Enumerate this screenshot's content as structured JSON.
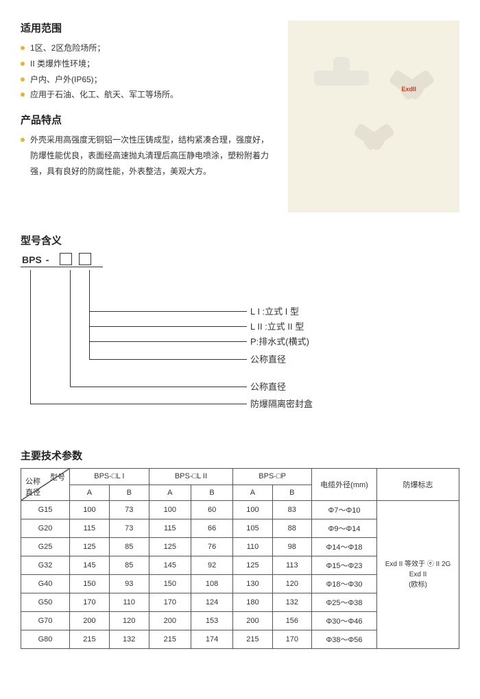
{
  "sections": {
    "scope_title": "适用范围",
    "scope_items": [
      "1区、2区危险场所；",
      "II 类爆炸性环境；",
      "户内、户外(IP65)；",
      "应用于石油、化工、航天、军工等场所。"
    ],
    "features_title": "产品特点",
    "features_text": "外壳采用高强度无铜铝一次性压铸成型，结构紧凑合理，强度好，防爆性能优良，表面经高速抛丸清理后高压静电喷涂，塑粉附着力强，具有良好的防腐性能，外表整洁，美观大方。",
    "model_title": "型号含义",
    "model_prefix": "BPS",
    "model_dash": "-",
    "model_legend": {
      "l1": "L I :立式 I 型",
      "l2": "L II :立式 II 型",
      "p": "P:排水式(横式)",
      "dia": "公称直径",
      "box": "防爆隔离密封盒"
    },
    "ex_label": "ExdII",
    "params_title": "主要技术参数"
  },
  "table": {
    "diag_top": "型号",
    "diag_bot": "公称\n直径",
    "group_labels": [
      "BPS-□L I",
      "BPS-□L II",
      "BPS-□P"
    ],
    "sub_labels": [
      "A",
      "B"
    ],
    "col_cable": "电缆外径(mm)",
    "col_mark": "防爆标志",
    "mark_text": "Exd II 等效于 ⓔ II 2G Exd II\n(欧标)",
    "rows": [
      {
        "d": "G15",
        "v": [
          "100",
          "73",
          "100",
          "60",
          "100",
          "83"
        ],
        "c": "Φ7～Φ10"
      },
      {
        "d": "G20",
        "v": [
          "115",
          "73",
          "115",
          "66",
          "105",
          "88"
        ],
        "c": "Φ9～Φ14"
      },
      {
        "d": "G25",
        "v": [
          "125",
          "85",
          "125",
          "76",
          "110",
          "98"
        ],
        "c": "Φ14～Φ18"
      },
      {
        "d": "G32",
        "v": [
          "145",
          "85",
          "145",
          "92",
          "125",
          "113"
        ],
        "c": "Φ15～Φ23"
      },
      {
        "d": "G40",
        "v": [
          "150",
          "93",
          "150",
          "108",
          "130",
          "120"
        ],
        "c": "Φ18～Φ30"
      },
      {
        "d": "G50",
        "v": [
          "170",
          "110",
          "170",
          "124",
          "180",
          "132"
        ],
        "c": "Φ25～Φ38"
      },
      {
        "d": "G70",
        "v": [
          "200",
          "120",
          "200",
          "153",
          "200",
          "156"
        ],
        "c": "Φ30～Φ46"
      },
      {
        "d": "G80",
        "v": [
          "215",
          "132",
          "215",
          "174",
          "215",
          "170"
        ],
        "c": "Φ38～Φ56"
      }
    ]
  },
  "colors": {
    "bullet": "#eab42e",
    "img_bg": "#f4f1e2"
  }
}
